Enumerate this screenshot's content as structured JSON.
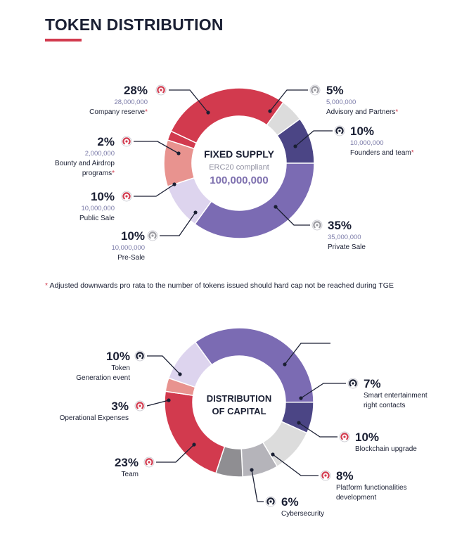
{
  "title": "TOKEN DISTRIBUTION",
  "footnote": {
    "marker": "*",
    "text": "Adjusted downwards pro rata to the number of tokens issued should hard cap not be reached during TGE"
  },
  "colors": {
    "red": "#d23a4e",
    "light_gray": "#dcdcdc",
    "navy_purple": "#4b4585",
    "purple": "#7b6bb3",
    "lavender": "#ddd4ee",
    "salmon": "#e8938f",
    "gray": "#b5b4ba",
    "dark_gray": "#8f8e92",
    "purple_value": "#7d6fae",
    "text": "#1a1f33"
  },
  "chart_data": [
    {
      "type": "pie",
      "center_title": "FIXED SUPPLY",
      "center_subtitle": "ERC20 compliant",
      "center_value": "100,000,000",
      "slices": [
        {
          "pct_label": "28%",
          "value": 28,
          "amount": "28,000,000",
          "name": "Company reserve",
          "name2": "",
          "asterisk": true,
          "color": "#d23a4e",
          "icon": "red"
        },
        {
          "pct_label": "5%",
          "value": 5,
          "amount": "5,000,000",
          "name": "Advisory and Partners",
          "name2": "",
          "asterisk": true,
          "color": "#dcdcdc",
          "icon": "gray"
        },
        {
          "pct_label": "10%",
          "value": 10,
          "amount": "10,000,000",
          "name": "Founders and team",
          "name2": "",
          "asterisk": true,
          "color": "#4b4585",
          "icon": "dark"
        },
        {
          "pct_label": "35%",
          "value": 35,
          "amount": "35,000,000",
          "name": "Private Sale",
          "name2": "",
          "asterisk": false,
          "color": "#7b6bb3",
          "icon": "gray"
        },
        {
          "pct_label": "10%",
          "value": 10,
          "amount": "10,000,000",
          "name": "Pre-Sale",
          "name2": "",
          "asterisk": false,
          "color": "#ddd4ee",
          "icon": "gray"
        },
        {
          "pct_label": "10%",
          "value": 10,
          "amount": "10,000,000",
          "name": "Public Sale",
          "name2": "",
          "asterisk": false,
          "color": "#e8938f",
          "icon": "red"
        },
        {
          "pct_label": "2%",
          "value": 2,
          "amount": "2,000,000",
          "name": "Bounty and Airdrop",
          "name2": "programs",
          "asterisk": true,
          "color": "#d23a4e",
          "icon": "red"
        }
      ]
    },
    {
      "type": "pie",
      "center_title": "DISTRIBUTION",
      "center_title2": "OF CAPITAL",
      "slices": [
        {
          "pct_label": "",
          "value": 36,
          "name": "",
          "name2": "",
          "color": "#7b6bb3",
          "icon": "none"
        },
        {
          "pct_label": "7%",
          "value": 7,
          "name": "Smart entertainment",
          "name2": "right contacts",
          "color": "#4b4585",
          "icon": "dark"
        },
        {
          "pct_label": "10%",
          "value": 10,
          "name": "Blockchain upgrade",
          "name2": "",
          "color": "#dcdcdc",
          "icon": "red"
        },
        {
          "pct_label": "8%",
          "value": 8,
          "name": "Platform functionalities",
          "name2": "development",
          "color": "#b5b4ba",
          "icon": "red"
        },
        {
          "pct_label": "6%",
          "value": 6,
          "name": "Cybersecurity",
          "name2": "",
          "color": "#8f8e92",
          "icon": "dark"
        },
        {
          "pct_label": "23%",
          "value": 23,
          "name": "Team",
          "name2": "",
          "color": "#d23a4e",
          "icon": "red"
        },
        {
          "pct_label": "3%",
          "value": 3,
          "name": "Operational Expenses",
          "name2": "",
          "color": "#e8938f",
          "icon": "red"
        },
        {
          "pct_label": "10%",
          "value": 10,
          "name": "Token",
          "name2": "Generation event",
          "color": "#ddd4ee",
          "icon": "dark"
        }
      ]
    }
  ]
}
